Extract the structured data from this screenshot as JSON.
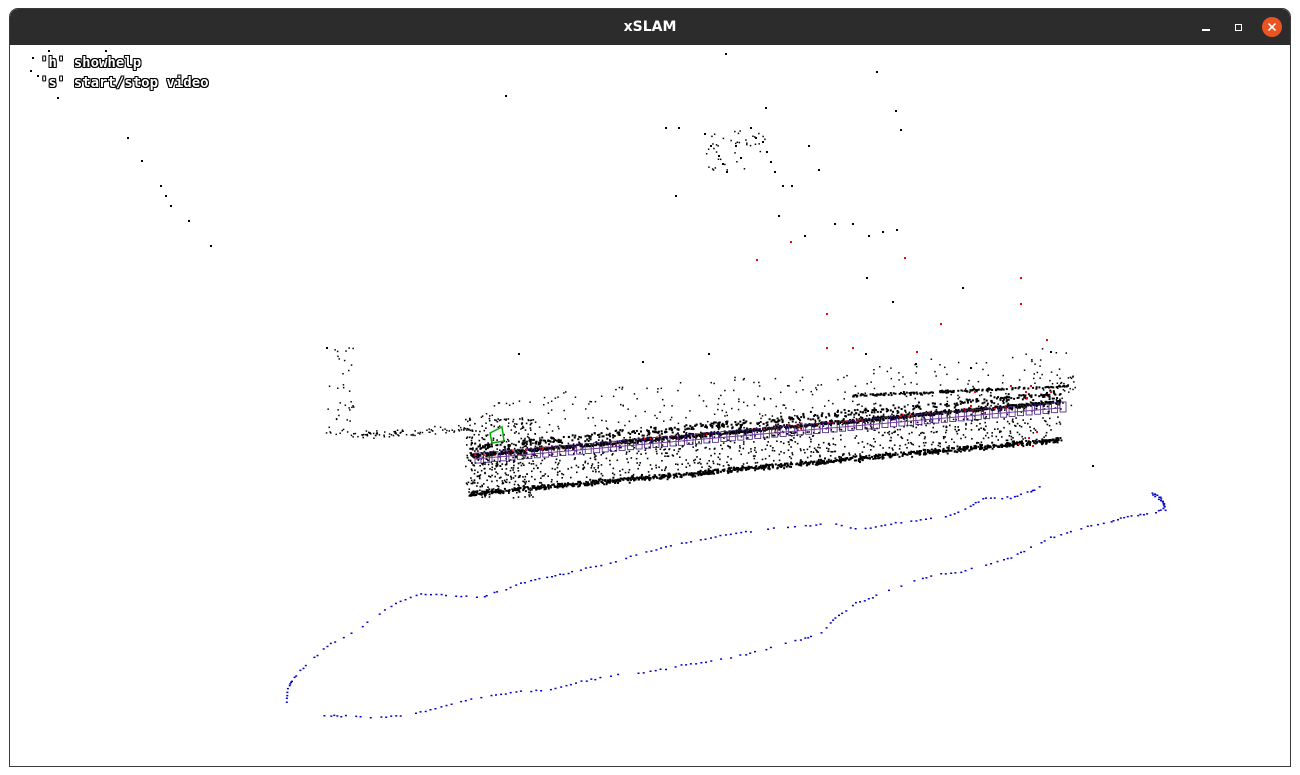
{
  "window": {
    "title": "xSLAM",
    "controls": [
      "minimize",
      "maximize",
      "close"
    ],
    "close_color": "#e95420",
    "titlebar_color": "#2c2c2c"
  },
  "help": {
    "line1": "'h' showhelp",
    "line2": "'s' start/stop video"
  },
  "scene": {
    "background": "#ffffff",
    "colors": {
      "map_points": "#000000",
      "new_points": "#ff0000",
      "trajectory": "#0000cc",
      "keyframes": "#3a1a7a",
      "current_frame": "#00aa00"
    }
  }
}
